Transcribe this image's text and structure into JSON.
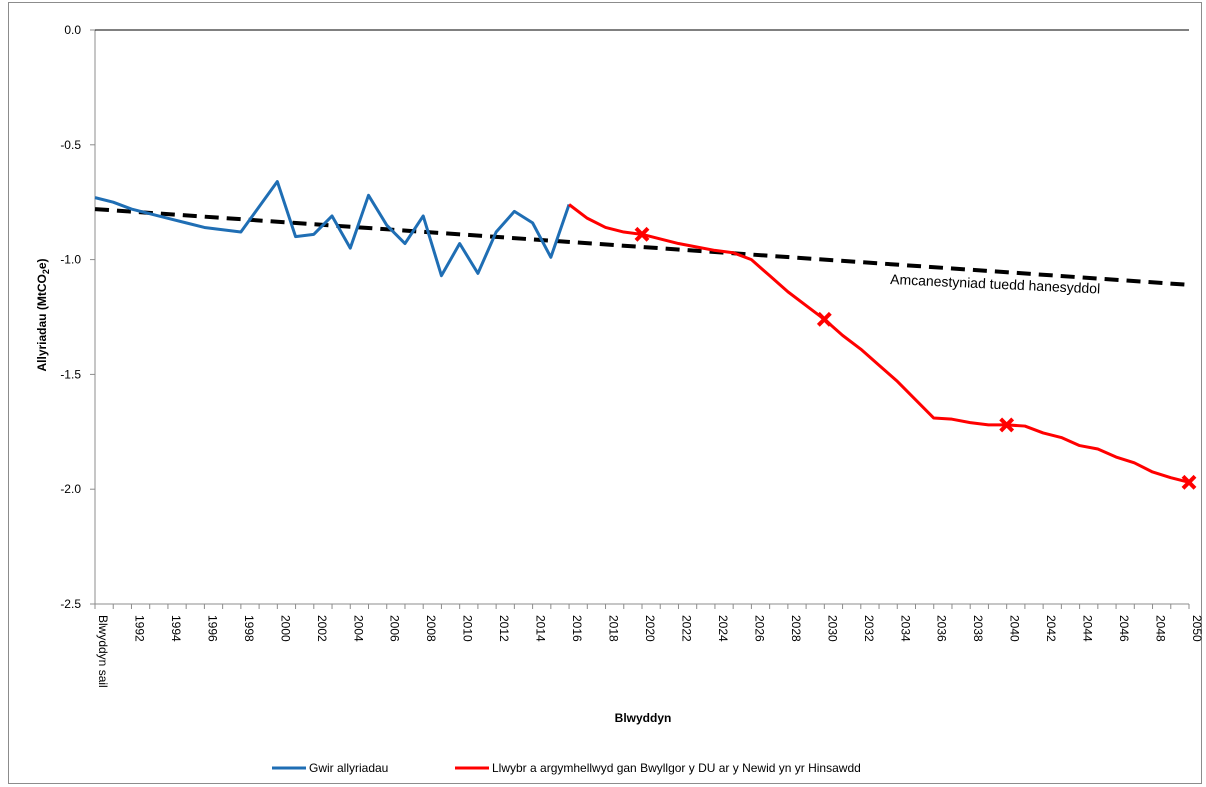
{
  "chart_data": {
    "type": "line",
    "title": "",
    "xlabel": "Blwyddyn",
    "ylabel_main": "Allyriadau (MtCO",
    "ylabel_sub": "2",
    "ylabel_end": "e)",
    "ylim": [
      -2.5,
      0.0
    ],
    "yticks": [
      "0.0",
      "-0.5",
      "-1.0",
      "-1.5",
      "-2.0",
      "-2.5"
    ],
    "ytick_values": [
      0.0,
      -0.5,
      -1.0,
      -1.5,
      -2.0,
      -2.5
    ],
    "xlim": [
      1990,
      2050
    ],
    "x_base_label": "Blwyddyn sail",
    "xtick_years": [
      1992,
      1994,
      1996,
      1998,
      2000,
      2002,
      2004,
      2006,
      2008,
      2010,
      2012,
      2014,
      2016,
      2018,
      2020,
      2022,
      2024,
      2026,
      2028,
      2030,
      2032,
      2034,
      2036,
      2038,
      2040,
      2042,
      2044,
      2046,
      2048,
      2050
    ],
    "xtick_labels": [
      "1992",
      "1994",
      "1996",
      "1998",
      "2000",
      "2002",
      "2004",
      "2006",
      "2008",
      "2010",
      "2012",
      "2014",
      "2016",
      "2018",
      "2020",
      "2022",
      "2024",
      "2026",
      "2028",
      "2030",
      "2032",
      "2034",
      "2036",
      "2038",
      "2040",
      "2042",
      "2044",
      "2046",
      "2048",
      "2050"
    ],
    "series": [
      {
        "name": "Gwir allyriadau",
        "color": "#1f6eb4",
        "x": [
          1990,
          1991,
          1992,
          1993,
          1994,
          1995,
          1996,
          1997,
          1998,
          1999,
          2000,
          2001,
          2002,
          2003,
          2004,
          2005,
          2006,
          2007,
          2008,
          2009,
          2010,
          2011,
          2012,
          2013,
          2014,
          2015,
          2016
        ],
        "values": [
          -0.73,
          -0.75,
          -0.78,
          -0.8,
          -0.82,
          -0.84,
          -0.86,
          -0.87,
          -0.88,
          -0.77,
          -0.66,
          -0.9,
          -0.89,
          -0.81,
          -0.95,
          -0.72,
          -0.85,
          -0.93,
          -0.81,
          -1.07,
          -0.93,
          -1.06,
          -0.88,
          -0.79,
          -0.84,
          -0.99,
          -0.76
        ]
      },
      {
        "name": "Llwybr a argymhellwyd gan Bwyllgor y DU ar y Newid yn yr Hinsawdd",
        "color": "#ff0000",
        "x": [
          2016,
          2017,
          2018,
          2019,
          2020,
          2021,
          2022,
          2023,
          2024,
          2025,
          2026,
          2027,
          2028,
          2029,
          2030,
          2031,
          2032,
          2033,
          2034,
          2035,
          2036,
          2037,
          2038,
          2039,
          2040,
          2041,
          2042,
          2043,
          2044,
          2045,
          2046,
          2047,
          2048,
          2049,
          2050
        ],
        "values": [
          -0.76,
          -0.82,
          -0.86,
          -0.88,
          -0.89,
          -0.91,
          -0.93,
          -0.945,
          -0.96,
          -0.97,
          -1.0,
          -1.07,
          -1.14,
          -1.2,
          -1.26,
          -1.33,
          -1.39,
          -1.46,
          -1.53,
          -1.61,
          -1.69,
          -1.695,
          -1.71,
          -1.72,
          -1.72,
          -1.725,
          -1.755,
          -1.775,
          -1.81,
          -1.825,
          -1.86,
          -1.885,
          -1.925,
          -1.95,
          -1.97
        ],
        "markers_x": [
          2020,
          2030,
          2040,
          2050
        ],
        "markers_y": [
          -0.89,
          -1.26,
          -1.72,
          -1.97
        ]
      },
      {
        "name": "Amcanestyniad tuedd hanesyddol",
        "color": "#000000",
        "x": [
          1990,
          2050
        ],
        "values": [
          -0.78,
          -1.11
        ]
      }
    ],
    "annotation": "Amcanestyniad tuedd hanesyddol",
    "legend_position": "bottom"
  }
}
